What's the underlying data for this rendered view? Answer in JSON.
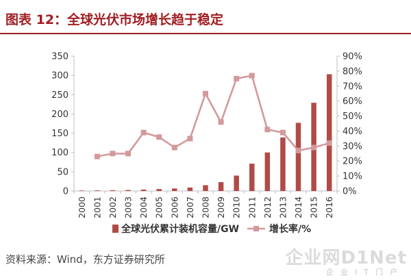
{
  "header": {
    "title": "图表 12：全球光伏市场增长趋于稳定"
  },
  "footer": {
    "source": "资料来源：Wind，东方证券研究所"
  },
  "watermark": {
    "main": "企业网D1Net",
    "sub": "企业IT门户"
  },
  "colors": {
    "bar": "#b04b47",
    "line": "#d3999b",
    "title": "#a01e22"
  },
  "chart_data": {
    "type": "bar",
    "categories": [
      "2000",
      "2001",
      "2002",
      "2003",
      "2004",
      "2005",
      "2006",
      "2007",
      "2008",
      "2009",
      "2010",
      "2011",
      "2012",
      "2013",
      "2014",
      "2015",
      "2016"
    ],
    "ylim": [
      0,
      350
    ],
    "y_ticks": [
      "0",
      "50",
      "100",
      "150",
      "200",
      "250",
      "300",
      "350"
    ],
    "y2lim": [
      0,
      90
    ],
    "y2_ticks": [
      "0%",
      "10%",
      "20%",
      "30%",
      "40%",
      "50%",
      "60%",
      "70%",
      "80%",
      "90%"
    ],
    "grid": false,
    "legend_position": "bottom",
    "series": [
      {
        "name": "全球光伏累计装机容量/GW",
        "type": "bar",
        "axis": "left",
        "values": [
          1.3,
          1.6,
          2.0,
          2.6,
          3.7,
          5.1,
          6.6,
          9.0,
          15,
          23,
          40,
          71,
          100,
          139,
          177,
          229,
          303
        ]
      },
      {
        "name": "增长率/%",
        "type": "line",
        "axis": "right",
        "values": [
          null,
          23,
          25,
          25,
          39,
          36,
          29,
          35,
          65,
          46,
          75,
          77,
          41,
          39,
          27,
          29,
          32
        ]
      }
    ]
  }
}
